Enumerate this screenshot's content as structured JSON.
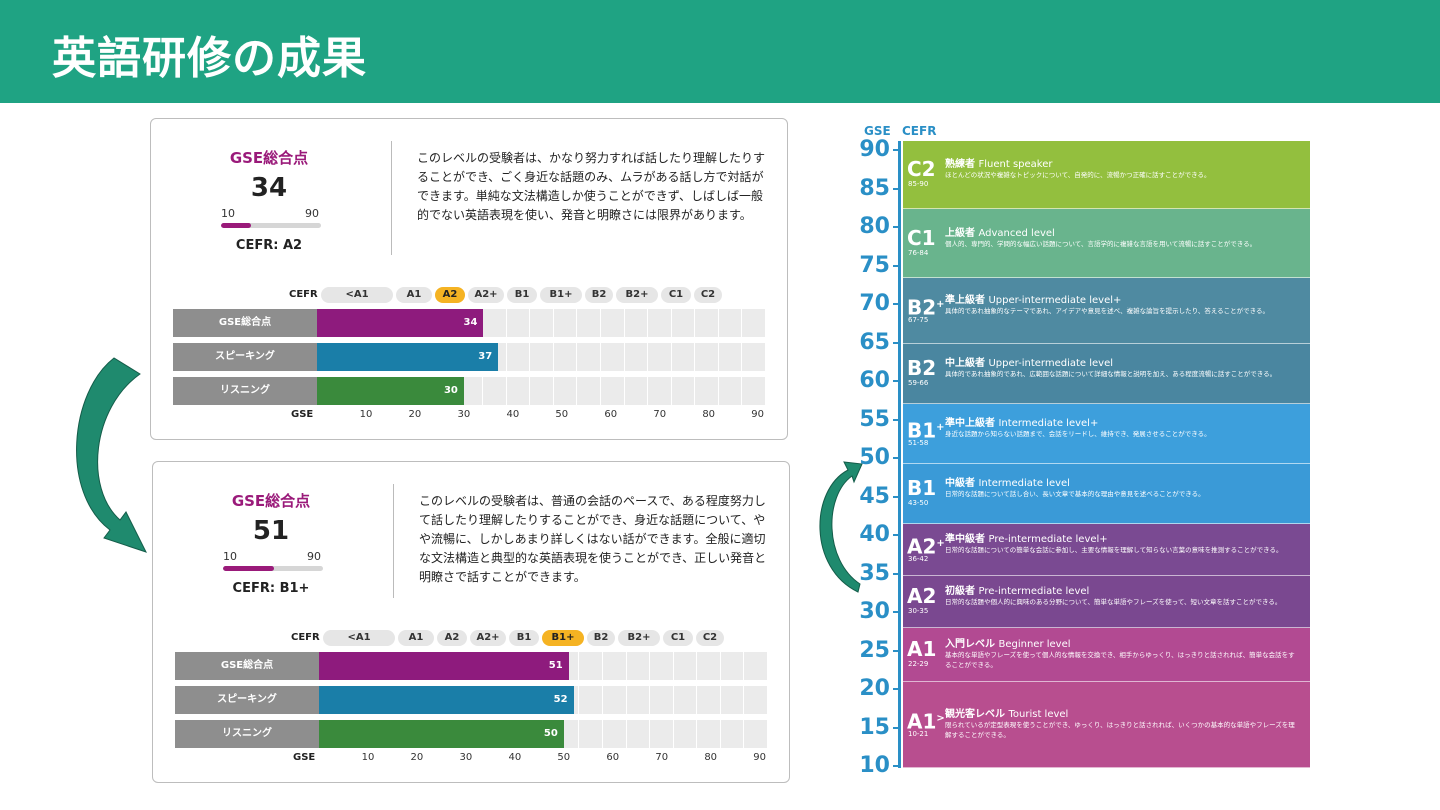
{
  "header": {
    "title": "英語研修の成果"
  },
  "card1": {
    "gse_title": "GSE総合点",
    "score": "34",
    "score_value": 34,
    "range_min": "10",
    "range_max": "90",
    "cefr": "CEFR: A2",
    "description": "このレベルの受験者は、かなり努力すれば話したり理解したりすることができ、ごく身近な話題のみ、ムラがある話し方で対話ができます。単純な文法構造しか使うことができず、しばしば一般的でない英語表現を使い、発音と明瞭さには限界があります。",
    "cefr_label": "CEFR",
    "cefr_levels": [
      "<A1",
      "A1",
      "A2",
      "A2+",
      "B1",
      "B1+",
      "B2",
      "B2+",
      "C1",
      "C2"
    ],
    "active_level": "A2",
    "rows": [
      {
        "label": "GSE総合点",
        "value": 34,
        "value_text": "34",
        "color": "#8e1b7d"
      },
      {
        "label": "スピーキング",
        "value": 37,
        "value_text": "37",
        "color": "#1a7ea8"
      },
      {
        "label": "リスニング",
        "value": 30,
        "value_text": "30",
        "color": "#3a8a3c"
      }
    ],
    "gse_label": "GSE",
    "ticks": [
      "10",
      "20",
      "30",
      "40",
      "50",
      "60",
      "70",
      "80",
      "90"
    ]
  },
  "card2": {
    "gse_title": "GSE総合点",
    "score": "51",
    "score_value": 51,
    "range_min": "10",
    "range_max": "90",
    "cefr": "CEFR: B1+",
    "description": "このレベルの受験者は、普通の会話のペースで、ある程度努力して話したり理解したりすることができ、身近な話題について、やや流暢に、しかしあまり詳しくはない話ができます。全般に適切な文法構造と典型的な英語表現を使うことができ、正しい発音と明瞭さで話すことができます。",
    "cefr_label": "CEFR",
    "cefr_levels": [
      "<A1",
      "A1",
      "A2",
      "A2+",
      "B1",
      "B1+",
      "B2",
      "B2+",
      "C1",
      "C2"
    ],
    "active_level": "B1+",
    "rows": [
      {
        "label": "GSE総合点",
        "value": 51,
        "value_text": "51",
        "color": "#8e1b7d"
      },
      {
        "label": "スピーキング",
        "value": 52,
        "value_text": "52",
        "color": "#1a7ea8"
      },
      {
        "label": "リスニング",
        "value": 50,
        "value_text": "50",
        "color": "#3a8a3c"
      }
    ],
    "gse_label": "GSE",
    "ticks": [
      "10",
      "20",
      "30",
      "40",
      "50",
      "60",
      "70",
      "80",
      "90"
    ]
  },
  "scale": {
    "gse_head": "GSE",
    "cefr_head": "CEFR",
    "numbers": [
      "90",
      "85",
      "80",
      "75",
      "70",
      "65",
      "60",
      "55",
      "50",
      "45",
      "40",
      "35",
      "30",
      "25",
      "20",
      "15",
      "10"
    ],
    "bands": [
      {
        "level": "C2",
        "sup": "",
        "range": "85-90",
        "from": 85,
        "to": 90,
        "title_ja": "熟練者",
        "title_en": "Fluent speaker",
        "desc": "ほとんどの状況や複雑なトピックについて、自発的に、流暢かつ正確に話すことができる。",
        "color": "#93bf3e"
      },
      {
        "level": "C1",
        "sup": "",
        "range": "76-84",
        "from": 76,
        "to": 84,
        "title_ja": "上級者",
        "title_en": "Advanced level",
        "desc": "個人的、専門的、学問的な幅広い話題について、言語学的に複雑な言語を用いて流暢に話すことができる。",
        "color": "#69b48d"
      },
      {
        "level": "B2",
        "sup": "+",
        "range": "67-75",
        "from": 67,
        "to": 75,
        "title_ja": "準上級者",
        "title_en": "Upper-intermediate level+",
        "desc": "具体的であれ抽象的なテーマであれ、アイデアや意見を述べ、複雑な論旨を提示したり、答えることができる。",
        "color": "#4f8aa1"
      },
      {
        "level": "B2",
        "sup": "",
        "range": "59-66",
        "from": 59,
        "to": 66,
        "title_ja": "中上級者",
        "title_en": "Upper-intermediate level",
        "desc": "具体的であれ抽象的であれ、広範囲な話題について詳細な情報と説明を加え、ある程度流暢に話すことができる。",
        "color": "#4a86a0"
      },
      {
        "level": "B1",
        "sup": "+",
        "range": "51-58",
        "from": 51,
        "to": 58,
        "title_ja": "準中上級者",
        "title_en": "Intermediate level+",
        "desc": "身近な話題から知らない話題まで、会話をリードし、維持でき、発展させることができる。",
        "color": "#3d9fdc"
      },
      {
        "level": "B1",
        "sup": "",
        "range": "43-50",
        "from": 43,
        "to": 50,
        "title_ja": "中級者",
        "title_en": "Intermediate level",
        "desc": "日常的な話題について話し合い、長い文章で基本的な理由や意見を述べることができる。",
        "color": "#3a9ad7"
      },
      {
        "level": "A2",
        "sup": "+",
        "range": "36-42",
        "from": 36,
        "to": 42,
        "title_ja": "準中級者",
        "title_en": "Pre-intermediate level+",
        "desc": "日常的な話題についての簡単な会話に参加し、主要な情報を理解して知らない言葉の意味を推測することができる。",
        "color": "#7a4a92"
      },
      {
        "level": "A2",
        "sup": "",
        "range": "30-35",
        "from": 30,
        "to": 35,
        "title_ja": "初級者",
        "title_en": "Pre-intermediate level",
        "desc": "日常的な話題や個人的に興味のある分野について、簡単な単語やフレーズを使って、短い文章を話すことができる。",
        "color": "#7a4890"
      },
      {
        "level": "A1",
        "sup": "",
        "range": "22-29",
        "from": 22,
        "to": 29,
        "title_ja": "入門レベル",
        "title_en": "Beginner level",
        "desc": "基本的な単語やフレーズを使って個人的な情報を交換でき、相手からゆっくり、はっきりと話されれば、簡単な会話をすることができる。",
        "color": "#b24a92"
      },
      {
        "level": "A1",
        "sup": ">",
        "range": "10-21",
        "from": 10,
        "to": 21,
        "title_ja": "観光客レベル",
        "title_en": "Tourist level",
        "desc": "限られているが定型表現を使うことができ、ゆっくり、はっきりと話されれば、いくつかの基本的な単語やフレーズを理解することができる。",
        "color": "#b84e8f"
      }
    ]
  }
}
